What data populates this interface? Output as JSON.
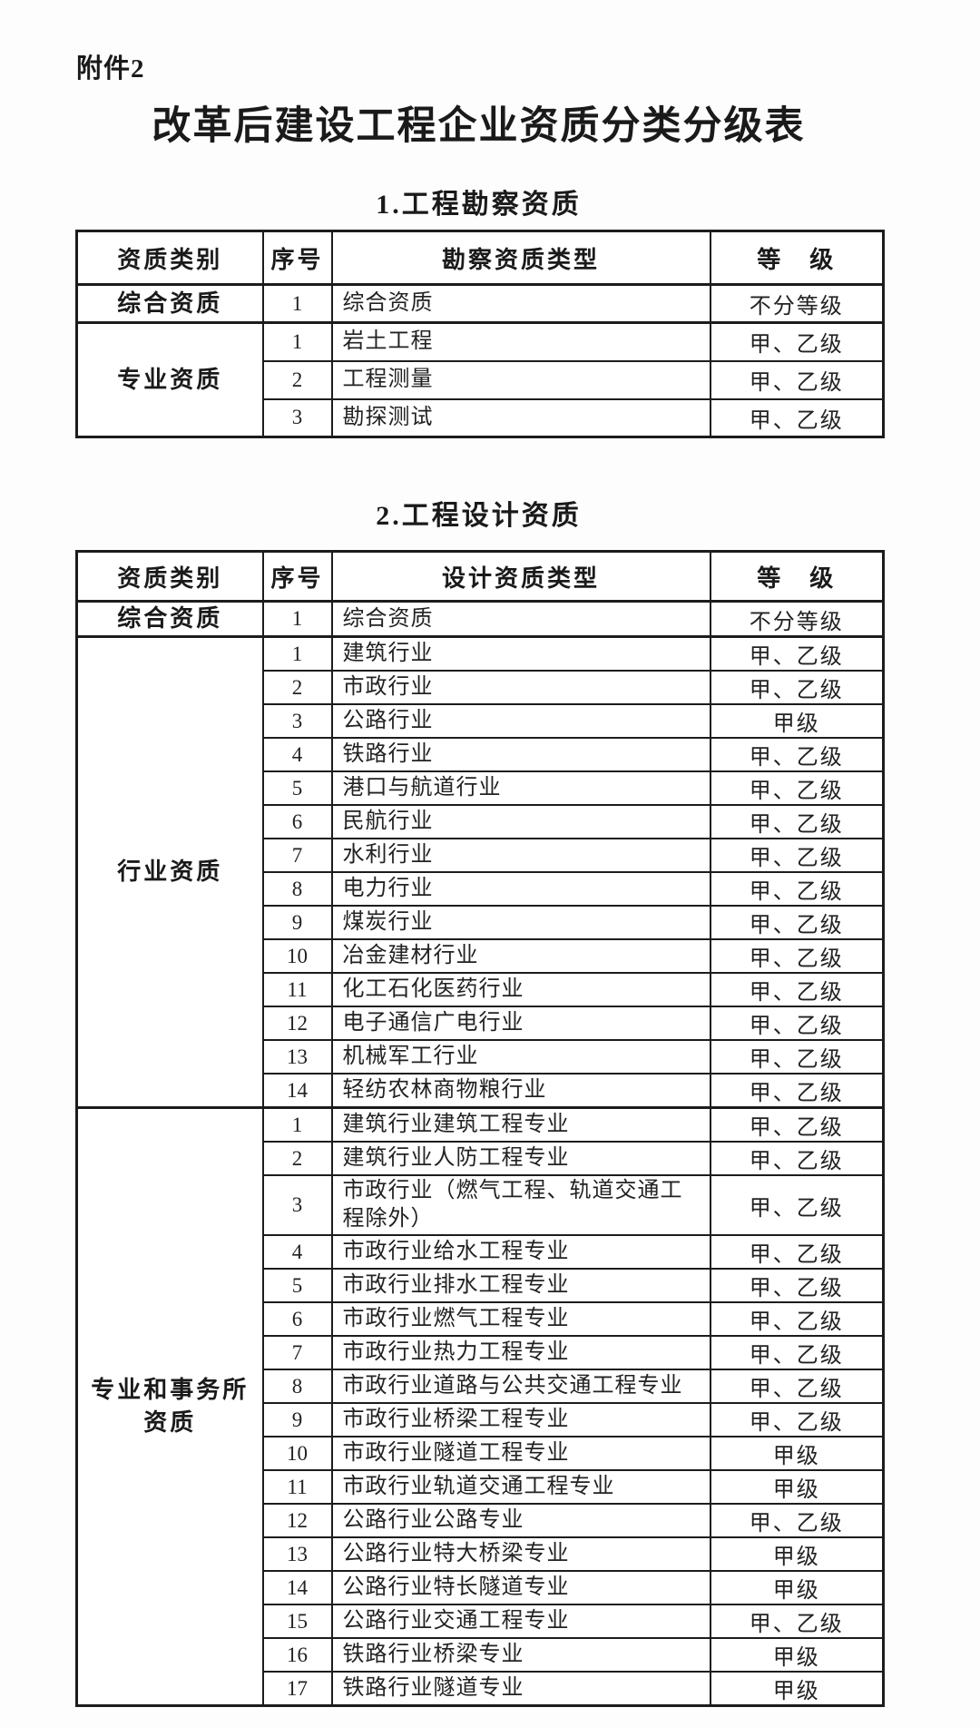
{
  "colors": {
    "text": "#1a1a1a",
    "border": "#1c1c1c",
    "background": "#fdfdfd"
  },
  "page": {
    "attachment_label": "附件2",
    "title": "改革后建设工程企业资质分类分级表"
  },
  "tables": [
    {
      "caption": "1.工程勘察资质",
      "headers": {
        "category": "资质类别",
        "no": "序号",
        "type": "勘察资质类型",
        "grade": "等　级"
      },
      "groups": [
        {
          "category": "综合资质",
          "rows": [
            {
              "no": "1",
              "type": "综合资质",
              "grade": "不分等级"
            }
          ]
        },
        {
          "category": "专业资质",
          "rows": [
            {
              "no": "1",
              "type": "岩土工程",
              "grade": "甲、乙级"
            },
            {
              "no": "2",
              "type": "工程测量",
              "grade": "甲、乙级"
            },
            {
              "no": "3",
              "type": "勘探测试",
              "grade": "甲、乙级"
            }
          ]
        }
      ]
    },
    {
      "caption": "2.工程设计资质",
      "headers": {
        "category": "资质类别",
        "no": "序号",
        "type": "设计资质类型",
        "grade": "等　级"
      },
      "groups": [
        {
          "category": "综合资质",
          "rows": [
            {
              "no": "1",
              "type": "综合资质",
              "grade": "不分等级"
            }
          ]
        },
        {
          "category": "行业资质",
          "rows": [
            {
              "no": "1",
              "type": "建筑行业",
              "grade": "甲、乙级"
            },
            {
              "no": "2",
              "type": "市政行业",
              "grade": "甲、乙级"
            },
            {
              "no": "3",
              "type": "公路行业",
              "grade": "甲级"
            },
            {
              "no": "4",
              "type": "铁路行业",
              "grade": "甲、乙级"
            },
            {
              "no": "5",
              "type": "港口与航道行业",
              "grade": "甲、乙级"
            },
            {
              "no": "6",
              "type": "民航行业",
              "grade": "甲、乙级"
            },
            {
              "no": "7",
              "type": "水利行业",
              "grade": "甲、乙级"
            },
            {
              "no": "8",
              "type": "电力行业",
              "grade": "甲、乙级"
            },
            {
              "no": "9",
              "type": "煤炭行业",
              "grade": "甲、乙级"
            },
            {
              "no": "10",
              "type": "冶金建材行业",
              "grade": "甲、乙级"
            },
            {
              "no": "11",
              "type": "化工石化医药行业",
              "grade": "甲、乙级"
            },
            {
              "no": "12",
              "type": "电子通信广电行业",
              "grade": "甲、乙级"
            },
            {
              "no": "13",
              "type": "机械军工行业",
              "grade": "甲、乙级"
            },
            {
              "no": "14",
              "type": "轻纺农林商物粮行业",
              "grade": "甲、乙级"
            }
          ]
        },
        {
          "category": "专业和事务所资质",
          "rows": [
            {
              "no": "1",
              "type": "建筑行业建筑工程专业",
              "grade": "甲、乙级"
            },
            {
              "no": "2",
              "type": "建筑行业人防工程专业",
              "grade": "甲、乙级"
            },
            {
              "no": "3",
              "type": "市政行业（燃气工程、轨道交通工程除外）",
              "grade": "甲、乙级"
            },
            {
              "no": "4",
              "type": "市政行业给水工程专业",
              "grade": "甲、乙级"
            },
            {
              "no": "5",
              "type": "市政行业排水工程专业",
              "grade": "甲、乙级"
            },
            {
              "no": "6",
              "type": "市政行业燃气工程专业",
              "grade": "甲、乙级"
            },
            {
              "no": "7",
              "type": "市政行业热力工程专业",
              "grade": "甲、乙级"
            },
            {
              "no": "8",
              "type": "市政行业道路与公共交通工程专业",
              "grade": "甲、乙级"
            },
            {
              "no": "9",
              "type": "市政行业桥梁工程专业",
              "grade": "甲、乙级"
            },
            {
              "no": "10",
              "type": "市政行业隧道工程专业",
              "grade": "甲级"
            },
            {
              "no": "11",
              "type": "市政行业轨道交通工程专业",
              "grade": "甲级"
            },
            {
              "no": "12",
              "type": "公路行业公路专业",
              "grade": "甲、乙级"
            },
            {
              "no": "13",
              "type": "公路行业特大桥梁专业",
              "grade": "甲级"
            },
            {
              "no": "14",
              "type": "公路行业特长隧道专业",
              "grade": "甲级"
            },
            {
              "no": "15",
              "type": "公路行业交通工程专业",
              "grade": "甲、乙级"
            },
            {
              "no": "16",
              "type": "铁路行业桥梁专业",
              "grade": "甲级"
            },
            {
              "no": "17",
              "type": "铁路行业隧道专业",
              "grade": "甲级"
            }
          ]
        }
      ]
    }
  ]
}
